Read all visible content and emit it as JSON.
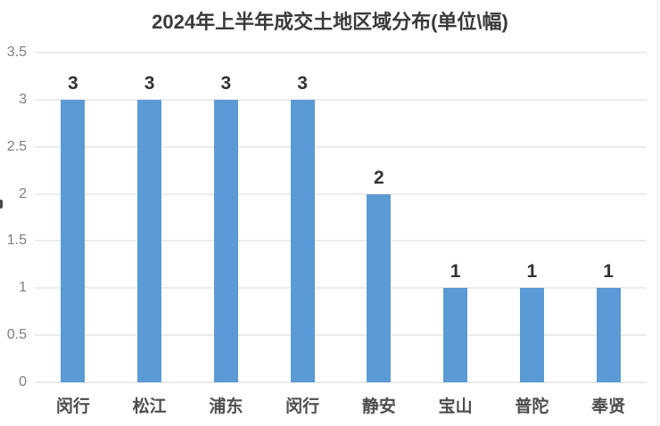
{
  "page": {
    "background": "#ffffff",
    "right_edge_border_color": "#e4e4e4"
  },
  "chart_data": {
    "type": "bar",
    "title": "2024年上半年成交土地区域分布(单位\\幅)",
    "categories": [
      "闵行",
      "松江",
      "浦东",
      "闵行",
      "静安",
      "宝山",
      "普陀",
      "奉贤"
    ],
    "values": [
      3,
      3,
      3,
      3,
      2,
      1,
      1,
      1
    ],
    "data_labels": [
      "3",
      "3",
      "3",
      "3",
      "2",
      "1",
      "1",
      "1"
    ],
    "xlabel": "",
    "ylabel": "",
    "ylim": [
      0,
      3.5
    ],
    "yticks": [
      0,
      0.5,
      1,
      1.5,
      2,
      2.5,
      3,
      3.5
    ],
    "ytick_labels": [
      "0",
      "0.5",
      "1",
      "1.5",
      "2",
      "2.5",
      "3",
      "3.5"
    ],
    "grid": "horizontal",
    "legend": "none",
    "bar_color": "#5b9bd5",
    "gridline_color": "#d9d9d9",
    "axis_line_color": "#d4d4d4",
    "title_color": "#3a3a3a",
    "data_label_color": "#333333",
    "category_label_color": "#4d4d4d",
    "ytick_label_color": "#7f7f7f"
  }
}
